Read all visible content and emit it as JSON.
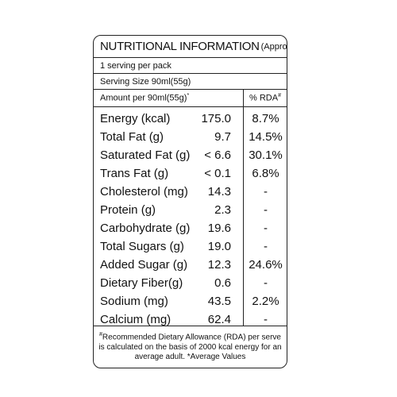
{
  "label": {
    "title": "NUTRITIONAL INFORMATION",
    "title_note": "(Approx)",
    "servings_per_pack": "1 serving per pack",
    "serving_size": "Serving Size 90ml(55g)",
    "amount_header": "Amount per 90ml(55g)",
    "amount_header_mark": "*",
    "rda_header": "% RDA",
    "rda_header_mark": "#",
    "nutrients": [
      {
        "name": "Energy (kcal)",
        "value": "175.0",
        "rda": "8.7%"
      },
      {
        "name": "Total Fat (g)",
        "value": "9.7",
        "rda": "14.5%"
      },
      {
        "name": "Saturated Fat (g)",
        "value": "< 6.6",
        "rda": "30.1%"
      },
      {
        "name": "Trans Fat (g)",
        "value": "< 0.1",
        "rda": "6.8%"
      },
      {
        "name": "Cholesterol (mg)",
        "value": "14.3",
        "rda": "-"
      },
      {
        "name": "Protein (g)",
        "value": "2.3",
        "rda": "-"
      },
      {
        "name": "Carbohydrate (g)",
        "value": "19.6",
        "rda": "-"
      },
      {
        "name": "Total Sugars (g)",
        "value": "19.0",
        "rda": "-"
      },
      {
        "name": "Added Sugar (g)",
        "value": "12.3",
        "rda": "24.6%"
      },
      {
        "name": "Dietary Fiber(g)",
        "value": "0.6",
        "rda": "-"
      },
      {
        "name": "Sodium (mg)",
        "value": "43.5",
        "rda": "2.2%"
      },
      {
        "name": "Calcium (mg)",
        "value": "62.4",
        "rda": "-"
      }
    ],
    "footnote_mark": "#",
    "footnote": "Recommended Dietary Allowance (RDA) per serve is calculated on the basis of 2000 kcal energy for an average adult. *Average Values"
  }
}
